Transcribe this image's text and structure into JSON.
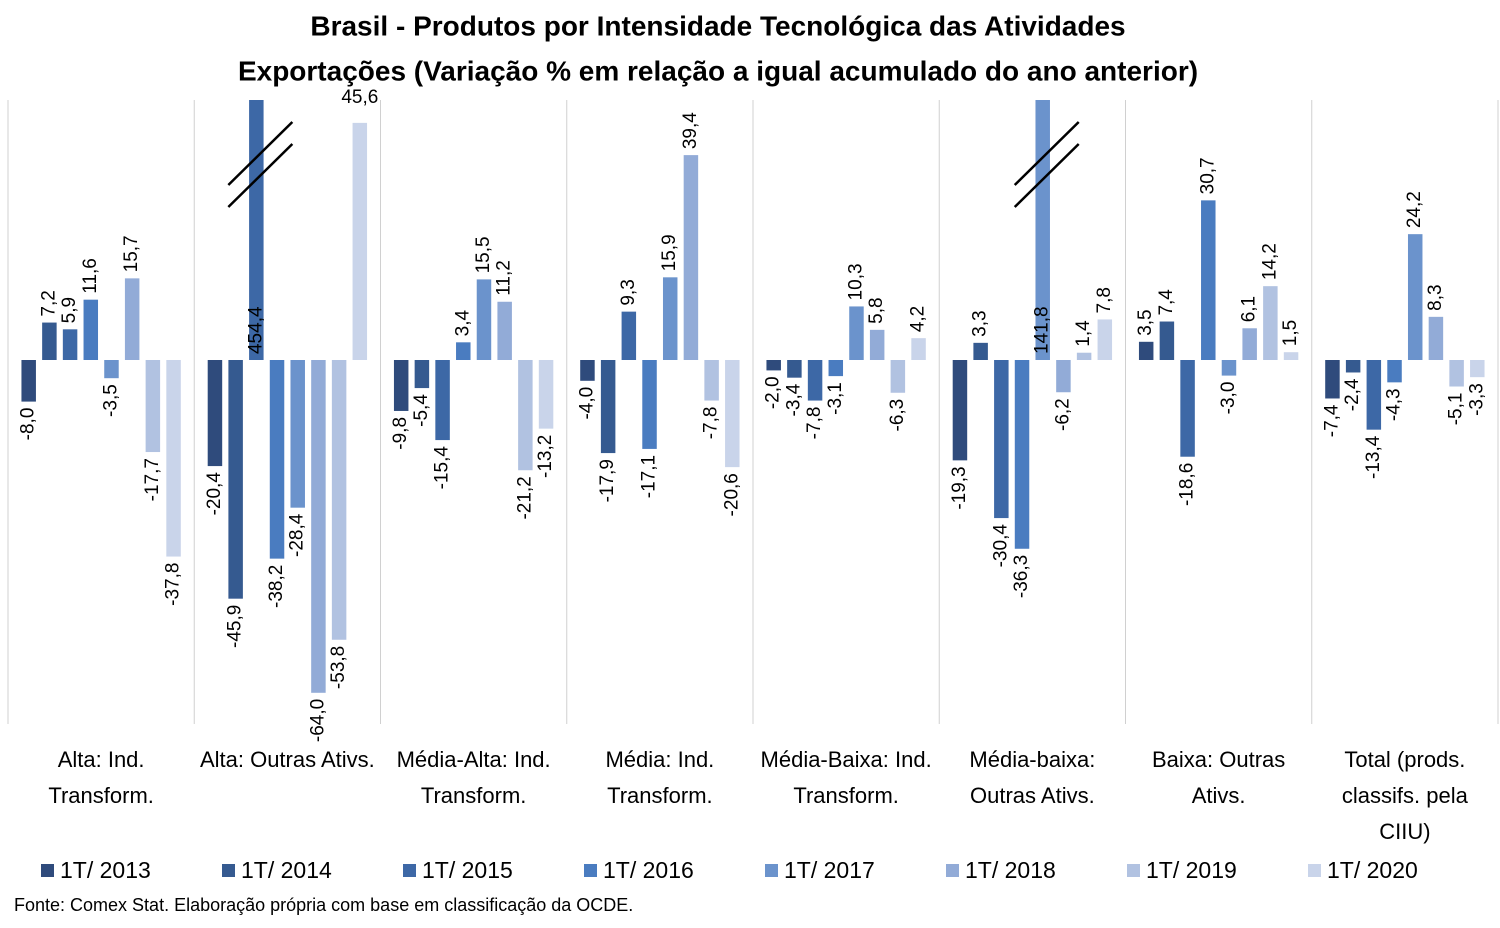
{
  "chart_data": {
    "type": "bar",
    "title": "Brasil - Produtos por Intensidade Tecnológica das Atividades",
    "subtitle": "Exportações (Variação % em relação a igual acumulado do ano anterior)",
    "note": "Fonte: Comex Stat.  Elaboração própria com base em classificação da OCDE.",
    "categories": [
      "Alta: Ind. Transform.",
      "Alta: Outras Ativs.",
      "Média-Alta: Ind. Transform.",
      "Média: Ind. Transform.",
      "Média-Baixa: Ind. Transform.",
      "Média-baixa: Outras Ativs.",
      "Baixa: Outras Ativs.",
      "Total (prods. classifs. pela CIIU)"
    ],
    "ylim": [
      -70,
      50
    ],
    "series": [
      {
        "name": "1T/ 2013",
        "color": "#2f4b7c",
        "values": [
          -8.0,
          -20.4,
          -9.8,
          -4.0,
          -2.0,
          -19.3,
          3.5,
          -7.4
        ],
        "value_labels": [
          "-8,0",
          "-20,4",
          "-9,8",
          "-4,0",
          "-2,0",
          "-19,3",
          "3,5",
          "-7,4"
        ]
      },
      {
        "name": "1T/ 2014",
        "color": "#355a90",
        "values": [
          7.2,
          -45.9,
          -5.4,
          -17.9,
          -3.4,
          3.3,
          7.4,
          -2.4
        ],
        "value_labels": [
          "7,2",
          "-45,9",
          "-5,4",
          "-17,9",
          "-3,4",
          "3,3",
          "7,4",
          "-2,4"
        ]
      },
      {
        "name": "1T/ 2015",
        "color": "#3d68a6",
        "values": [
          5.9,
          454.4,
          -15.4,
          9.3,
          -7.8,
          -30.4,
          -18.6,
          -13.4
        ],
        "value_labels": [
          "5,9",
          "454,4",
          "-15,4",
          "9,3",
          "-7,8",
          "-30,4",
          "-18,6",
          "-13,4"
        ]
      },
      {
        "name": "1T/ 2016",
        "color": "#4a7cc0",
        "values": [
          11.6,
          -38.2,
          3.4,
          -17.1,
          -3.1,
          -36.3,
          30.7,
          -4.3
        ],
        "value_labels": [
          "11,6",
          "-38,2",
          "3,4",
          "-17,1",
          "-3,1",
          "-36,3",
          "30,7",
          "-4,3"
        ]
      },
      {
        "name": "1T/ 2017",
        "color": "#6b93cc",
        "values": [
          -3.5,
          -28.4,
          15.5,
          15.9,
          10.3,
          141.8,
          -3.0,
          24.2
        ],
        "value_labels": [
          "-3,5",
          "-28,4",
          "15,5",
          "15,9",
          "10,3",
          "141,8",
          "-3,0",
          "24,2"
        ]
      },
      {
        "name": "1T/ 2018",
        "color": "#92abd7",
        "values": [
          15.7,
          -64.0,
          11.2,
          39.4,
          5.8,
          -6.2,
          6.1,
          8.3
        ],
        "value_labels": [
          "15,7",
          "-64,0",
          "11,2",
          "39,4",
          "5,8",
          "-6,2",
          "6,1",
          "8,3"
        ]
      },
      {
        "name": "1T/ 2019",
        "color": "#b1c2e1",
        "values": [
          -17.7,
          -53.8,
          -21.2,
          -7.8,
          -6.3,
          1.4,
          14.2,
          -5.1
        ],
        "value_labels": [
          "-17,7",
          "-53,8",
          "-21,2",
          "-7,8",
          "-6,3",
          "1,4",
          "14,2",
          "-5,1"
        ]
      },
      {
        "name": "1T/ 2020",
        "color": "#c9d4ea",
        "values": [
          -37.8,
          45.6,
          -13.2,
          -20.6,
          4.2,
          7.8,
          1.5,
          -3.3
        ],
        "value_labels": [
          "-37,8",
          "45,6",
          "-13,2",
          "-20,6",
          "4,2",
          "7,8",
          "1,5",
          "-3,3"
        ]
      }
    ]
  }
}
